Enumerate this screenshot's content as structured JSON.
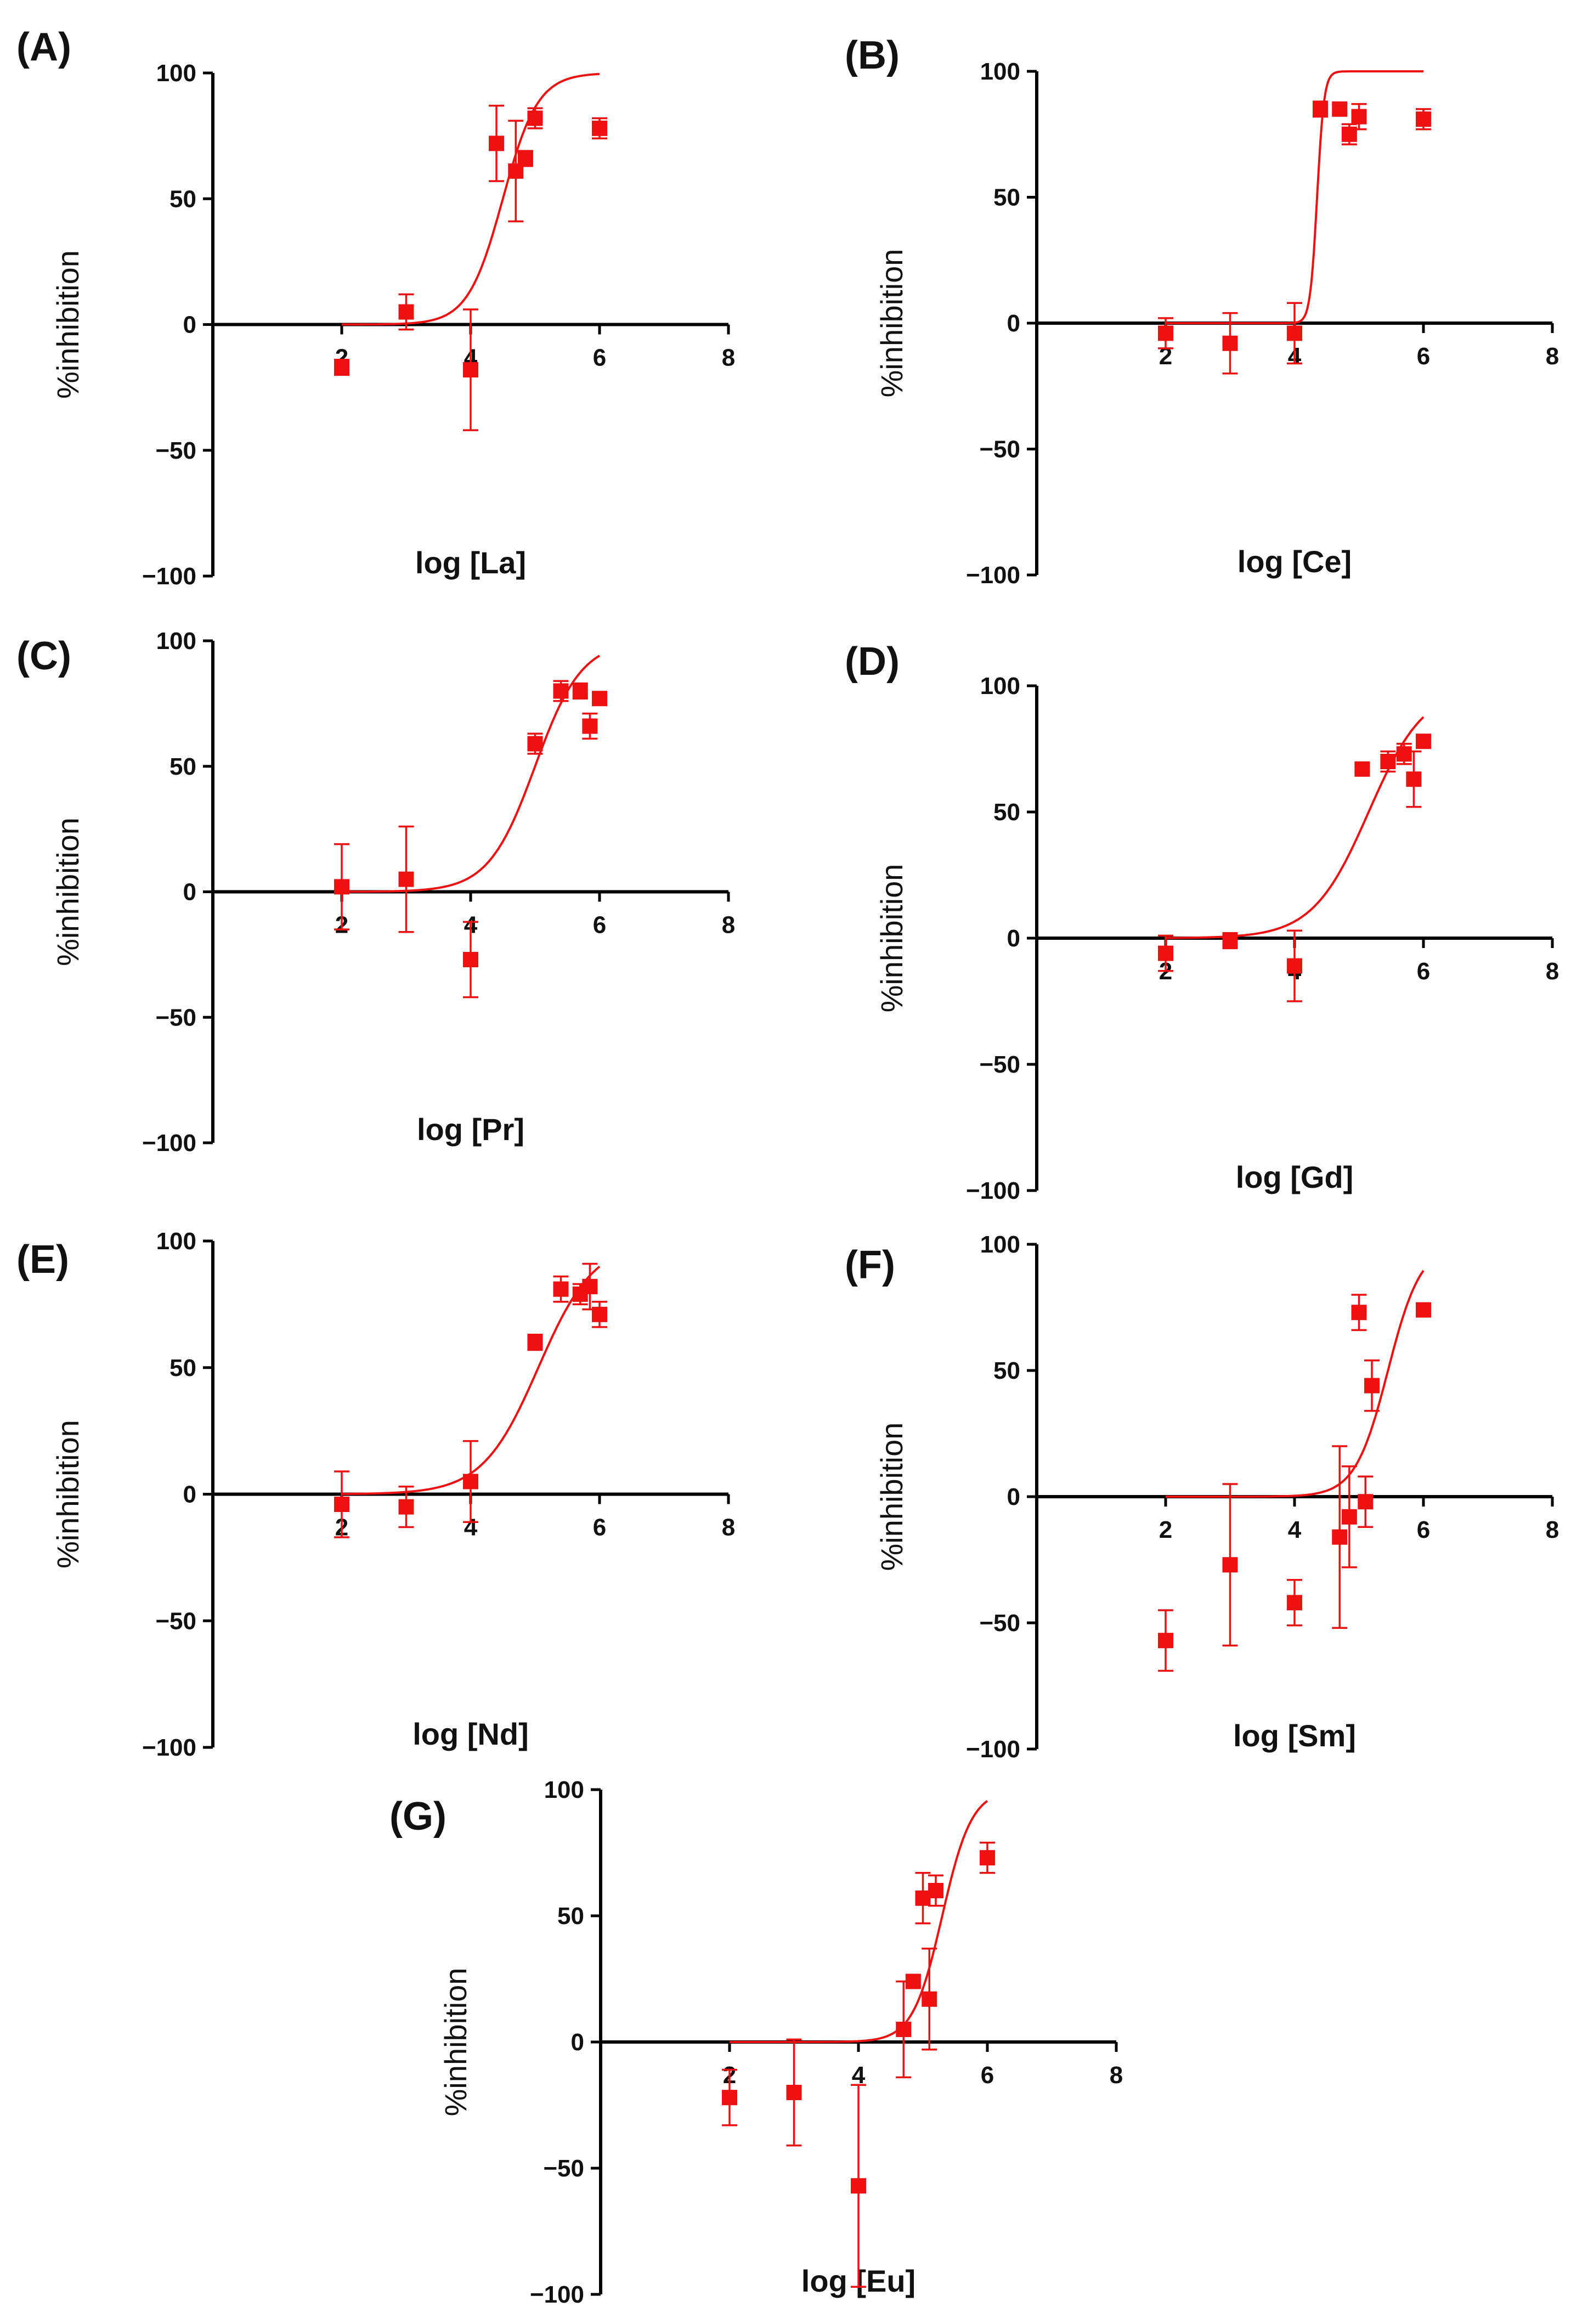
{
  "figure": {
    "colors": {
      "data": "#ee1111",
      "axis": "#000000",
      "text": "#111111"
    }
  },
  "chart_data": [
    {
      "type": "scatter",
      "panel": "(A)",
      "xlabel": "log [La]",
      "ylabel": "%inhibition",
      "xticks": [
        "2",
        "4",
        "6",
        "8"
      ],
      "yticks": [
        "100",
        "50",
        "0",
        "−50",
        "−100"
      ],
      "xlim": [
        0,
        8
      ],
      "ylim": [
        -100,
        100
      ],
      "points": [
        {
          "x": 2,
          "y": -17,
          "err": 3
        },
        {
          "x": 3,
          "y": 5,
          "err": 7
        },
        {
          "x": 4,
          "y": -18,
          "err": 24
        },
        {
          "x": 4.4,
          "y": 72,
          "err": 15
        },
        {
          "x": 4.7,
          "y": 61,
          "err": 20
        },
        {
          "x": 4.85,
          "y": 66,
          "err": 3
        },
        {
          "x": 5,
          "y": 82,
          "err": 4
        },
        {
          "x": 6,
          "y": 78,
          "err": 4
        }
      ],
      "fit": {
        "bottom": 0,
        "top": 100,
        "logIC50": 4.5,
        "hill": 1.6,
        "xmin": 2,
        "xmax": 6
      }
    },
    {
      "type": "scatter",
      "panel": "(B)",
      "xlabel": "log [Ce]",
      "ylabel": "%inhibition",
      "xticks": [
        "2",
        "4",
        "6",
        "8"
      ],
      "yticks": [
        "100",
        "50",
        "0",
        "−50",
        "−100"
      ],
      "xlim": [
        0,
        8
      ],
      "ylim": [
        -100,
        100
      ],
      "points": [
        {
          "x": 2,
          "y": -4,
          "err": 6
        },
        {
          "x": 3,
          "y": -8,
          "err": 12
        },
        {
          "x": 4,
          "y": -4,
          "err": 12
        },
        {
          "x": 4.4,
          "y": 85,
          "err": 3
        },
        {
          "x": 4.7,
          "y": 85,
          "err": 2
        },
        {
          "x": 4.85,
          "y": 75,
          "err": 4
        },
        {
          "x": 5,
          "y": 82,
          "err": 5
        },
        {
          "x": 6,
          "y": 81,
          "err": 4
        }
      ],
      "fit": {
        "bottom": 0,
        "top": 100,
        "logIC50": 4.35,
        "hill": 8,
        "xmin": 2,
        "xmax": 6
      }
    },
    {
      "type": "scatter",
      "panel": "(C)",
      "xlabel": "log [Pr]",
      "ylabel": "%inhibition",
      "xticks": [
        "2",
        "4",
        "6",
        "8"
      ],
      "yticks": [
        "100",
        "50",
        "0",
        "−50",
        "−100"
      ],
      "xlim": [
        0,
        8
      ],
      "ylim": [
        -100,
        100
      ],
      "points": [
        {
          "x": 2,
          "y": 2,
          "err": 17
        },
        {
          "x": 3,
          "y": 5,
          "err": 21
        },
        {
          "x": 4,
          "y": -27,
          "err": 15
        },
        {
          "x": 5,
          "y": 59,
          "err": 4
        },
        {
          "x": 5.4,
          "y": 80,
          "err": 4
        },
        {
          "x": 5.7,
          "y": 80,
          "err": 3
        },
        {
          "x": 5.85,
          "y": 66,
          "err": 5
        },
        {
          "x": 6,
          "y": 77,
          "err": 2
        }
      ],
      "fit": {
        "bottom": 0,
        "top": 100,
        "logIC50": 5,
        "hill": 1.2,
        "xmin": 2,
        "xmax": 6
      }
    },
    {
      "type": "scatter",
      "panel": "(D)",
      "xlabel": "log [Gd]",
      "ylabel": "%inhibition",
      "xticks": [
        "2",
        "4",
        "6",
        "8"
      ],
      "yticks": [
        "100",
        "50",
        "0",
        "−50",
        "−100"
      ],
      "xlim": [
        0,
        8
      ],
      "ylim": [
        -100,
        100
      ],
      "points": [
        {
          "x": 2,
          "y": -6,
          "err": 7
        },
        {
          "x": 3,
          "y": -1,
          "err": 3
        },
        {
          "x": 4,
          "y": -11,
          "err": 14
        },
        {
          "x": 5.05,
          "y": 67,
          "err": 1
        },
        {
          "x": 5.45,
          "y": 70,
          "err": 4
        },
        {
          "x": 5.7,
          "y": 73,
          "err": 4
        },
        {
          "x": 5.85,
          "y": 63,
          "err": 11
        },
        {
          "x": 6,
          "y": 78,
          "err": 2
        }
      ],
      "fit": {
        "bottom": 0,
        "top": 100,
        "logIC50": 5.15,
        "hill": 1.0,
        "xmin": 2,
        "xmax": 6
      }
    },
    {
      "type": "scatter",
      "panel": "(E)",
      "xlabel": "log [Nd]",
      "ylabel": "%inhibition",
      "xticks": [
        "2",
        "4",
        "6",
        "8"
      ],
      "yticks": [
        "100",
        "50",
        "0",
        "−50",
        "−100"
      ],
      "xlim": [
        0,
        8
      ],
      "ylim": [
        -100,
        100
      ],
      "points": [
        {
          "x": 2,
          "y": -4,
          "err": 13
        },
        {
          "x": 3,
          "y": -5,
          "err": 8
        },
        {
          "x": 4,
          "y": 5,
          "err": 16
        },
        {
          "x": 5,
          "y": 60,
          "err": 3
        },
        {
          "x": 5.4,
          "y": 81,
          "err": 5
        },
        {
          "x": 5.7,
          "y": 79,
          "err": 4
        },
        {
          "x": 5.85,
          "y": 82,
          "err": 9
        },
        {
          "x": 6,
          "y": 71,
          "err": 5
        }
      ],
      "fit": {
        "bottom": 0,
        "top": 100,
        "logIC50": 5.05,
        "hill": 1.0,
        "xmin": 2,
        "xmax": 6
      }
    },
    {
      "type": "scatter",
      "panel": "(F)",
      "xlabel": "log [Sm]",
      "ylabel": "%inhibition",
      "xticks": [
        "2",
        "4",
        "6",
        "8"
      ],
      "yticks": [
        "100",
        "50",
        "0",
        "−50",
        "−100"
      ],
      "xlim": [
        0,
        8
      ],
      "ylim": [
        -100,
        100
      ],
      "points": [
        {
          "x": 2,
          "y": -57,
          "err": 12
        },
        {
          "x": 3,
          "y": -27,
          "err": 32
        },
        {
          "x": 4,
          "y": -42,
          "err": 9
        },
        {
          "x": 4.7,
          "y": -16,
          "err": 36
        },
        {
          "x": 4.85,
          "y": -8,
          "err": 20
        },
        {
          "x": 5,
          "y": 73,
          "err": 7
        },
        {
          "x": 5.1,
          "y": -2,
          "err": 10
        },
        {
          "x": 5.2,
          "y": 44,
          "err": 10
        },
        {
          "x": 6,
          "y": 74,
          "err": 2
        }
      ],
      "fit": {
        "bottom": 0,
        "top": 100,
        "logIC50": 5.45,
        "hill": 1.7,
        "xmin": 2,
        "xmax": 6
      }
    },
    {
      "type": "scatter",
      "panel": "(G)",
      "xlabel": "log [Eu]",
      "ylabel": "%inhibition",
      "xticks": [
        "2",
        "4",
        "6",
        "8"
      ],
      "yticks": [
        "100",
        "50",
        "0",
        "−50",
        "−100"
      ],
      "xlim": [
        0,
        8
      ],
      "ylim": [
        -100,
        100
      ],
      "points": [
        {
          "x": 2,
          "y": -22,
          "err": 11
        },
        {
          "x": 3,
          "y": -20,
          "err": 21
        },
        {
          "x": 4,
          "y": -57,
          "err": 40
        },
        {
          "x": 4.7,
          "y": 5,
          "err": 19
        },
        {
          "x": 4.85,
          "y": 24,
          "err": 2
        },
        {
          "x": 5,
          "y": 57,
          "err": 10
        },
        {
          "x": 5.1,
          "y": 17,
          "err": 20
        },
        {
          "x": 5.2,
          "y": 60,
          "err": 6
        },
        {
          "x": 6,
          "y": 73,
          "err": 6
        }
      ],
      "fit": {
        "bottom": 0,
        "top": 100,
        "logIC50": 5.3,
        "hill": 1.9,
        "xmin": 2,
        "xmax": 6
      }
    }
  ]
}
